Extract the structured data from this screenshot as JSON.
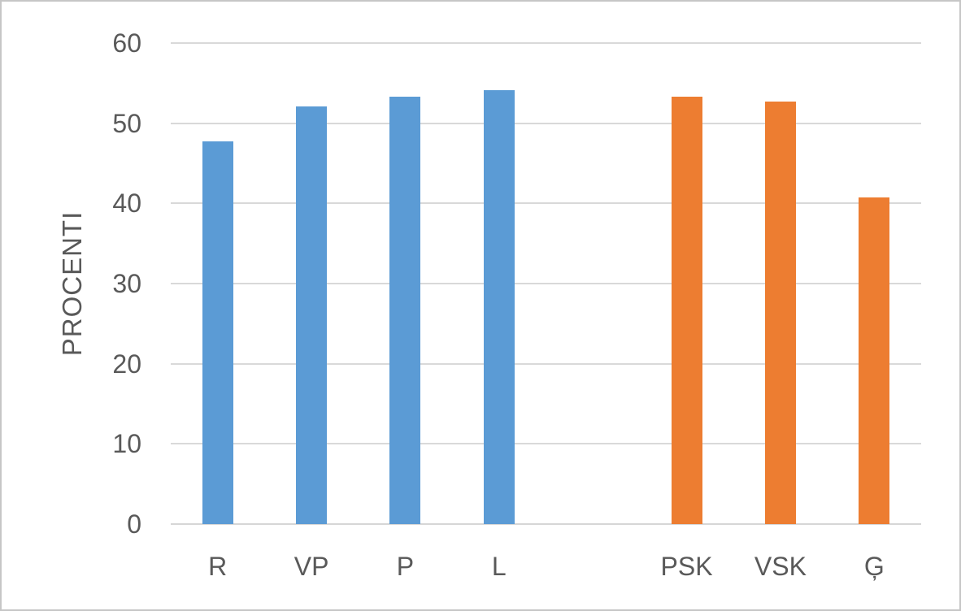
{
  "chart_data": {
    "type": "bar",
    "title": "",
    "xlabel": "",
    "ylabel": "PROCENTI",
    "ylim": [
      0,
      60
    ],
    "yticks": [
      0,
      10,
      20,
      30,
      40,
      50,
      60
    ],
    "grid": "horizontal",
    "legend": "none",
    "slots_total": 8,
    "categories": [
      "R",
      "VP",
      "P",
      "L",
      "PSK",
      "VSK",
      "Ģ"
    ],
    "bars": [
      {
        "label": "R",
        "value": 47.7,
        "color": "blue",
        "slot": 0
      },
      {
        "label": "VP",
        "value": 52.1,
        "color": "blue",
        "slot": 1
      },
      {
        "label": "P",
        "value": 53.3,
        "color": "blue",
        "slot": 2
      },
      {
        "label": "L",
        "value": 54.1,
        "color": "blue",
        "slot": 3
      },
      {
        "label": "PSK",
        "value": 53.3,
        "color": "orange",
        "slot": 5
      },
      {
        "label": "VSK",
        "value": 52.7,
        "color": "orange",
        "slot": 6
      },
      {
        "label": "Ģ",
        "value": 40.7,
        "color": "orange",
        "slot": 7
      }
    ],
    "colors": {
      "blue": "#5B9BD5",
      "orange": "#ED7D31"
    },
    "style": {
      "grid_color": "#D9D9D9",
      "axis_color": "#D6D6D6",
      "text_color": "#595959",
      "background": "#FFFFFF",
      "frame_border_color": "#C6C6C6"
    }
  }
}
